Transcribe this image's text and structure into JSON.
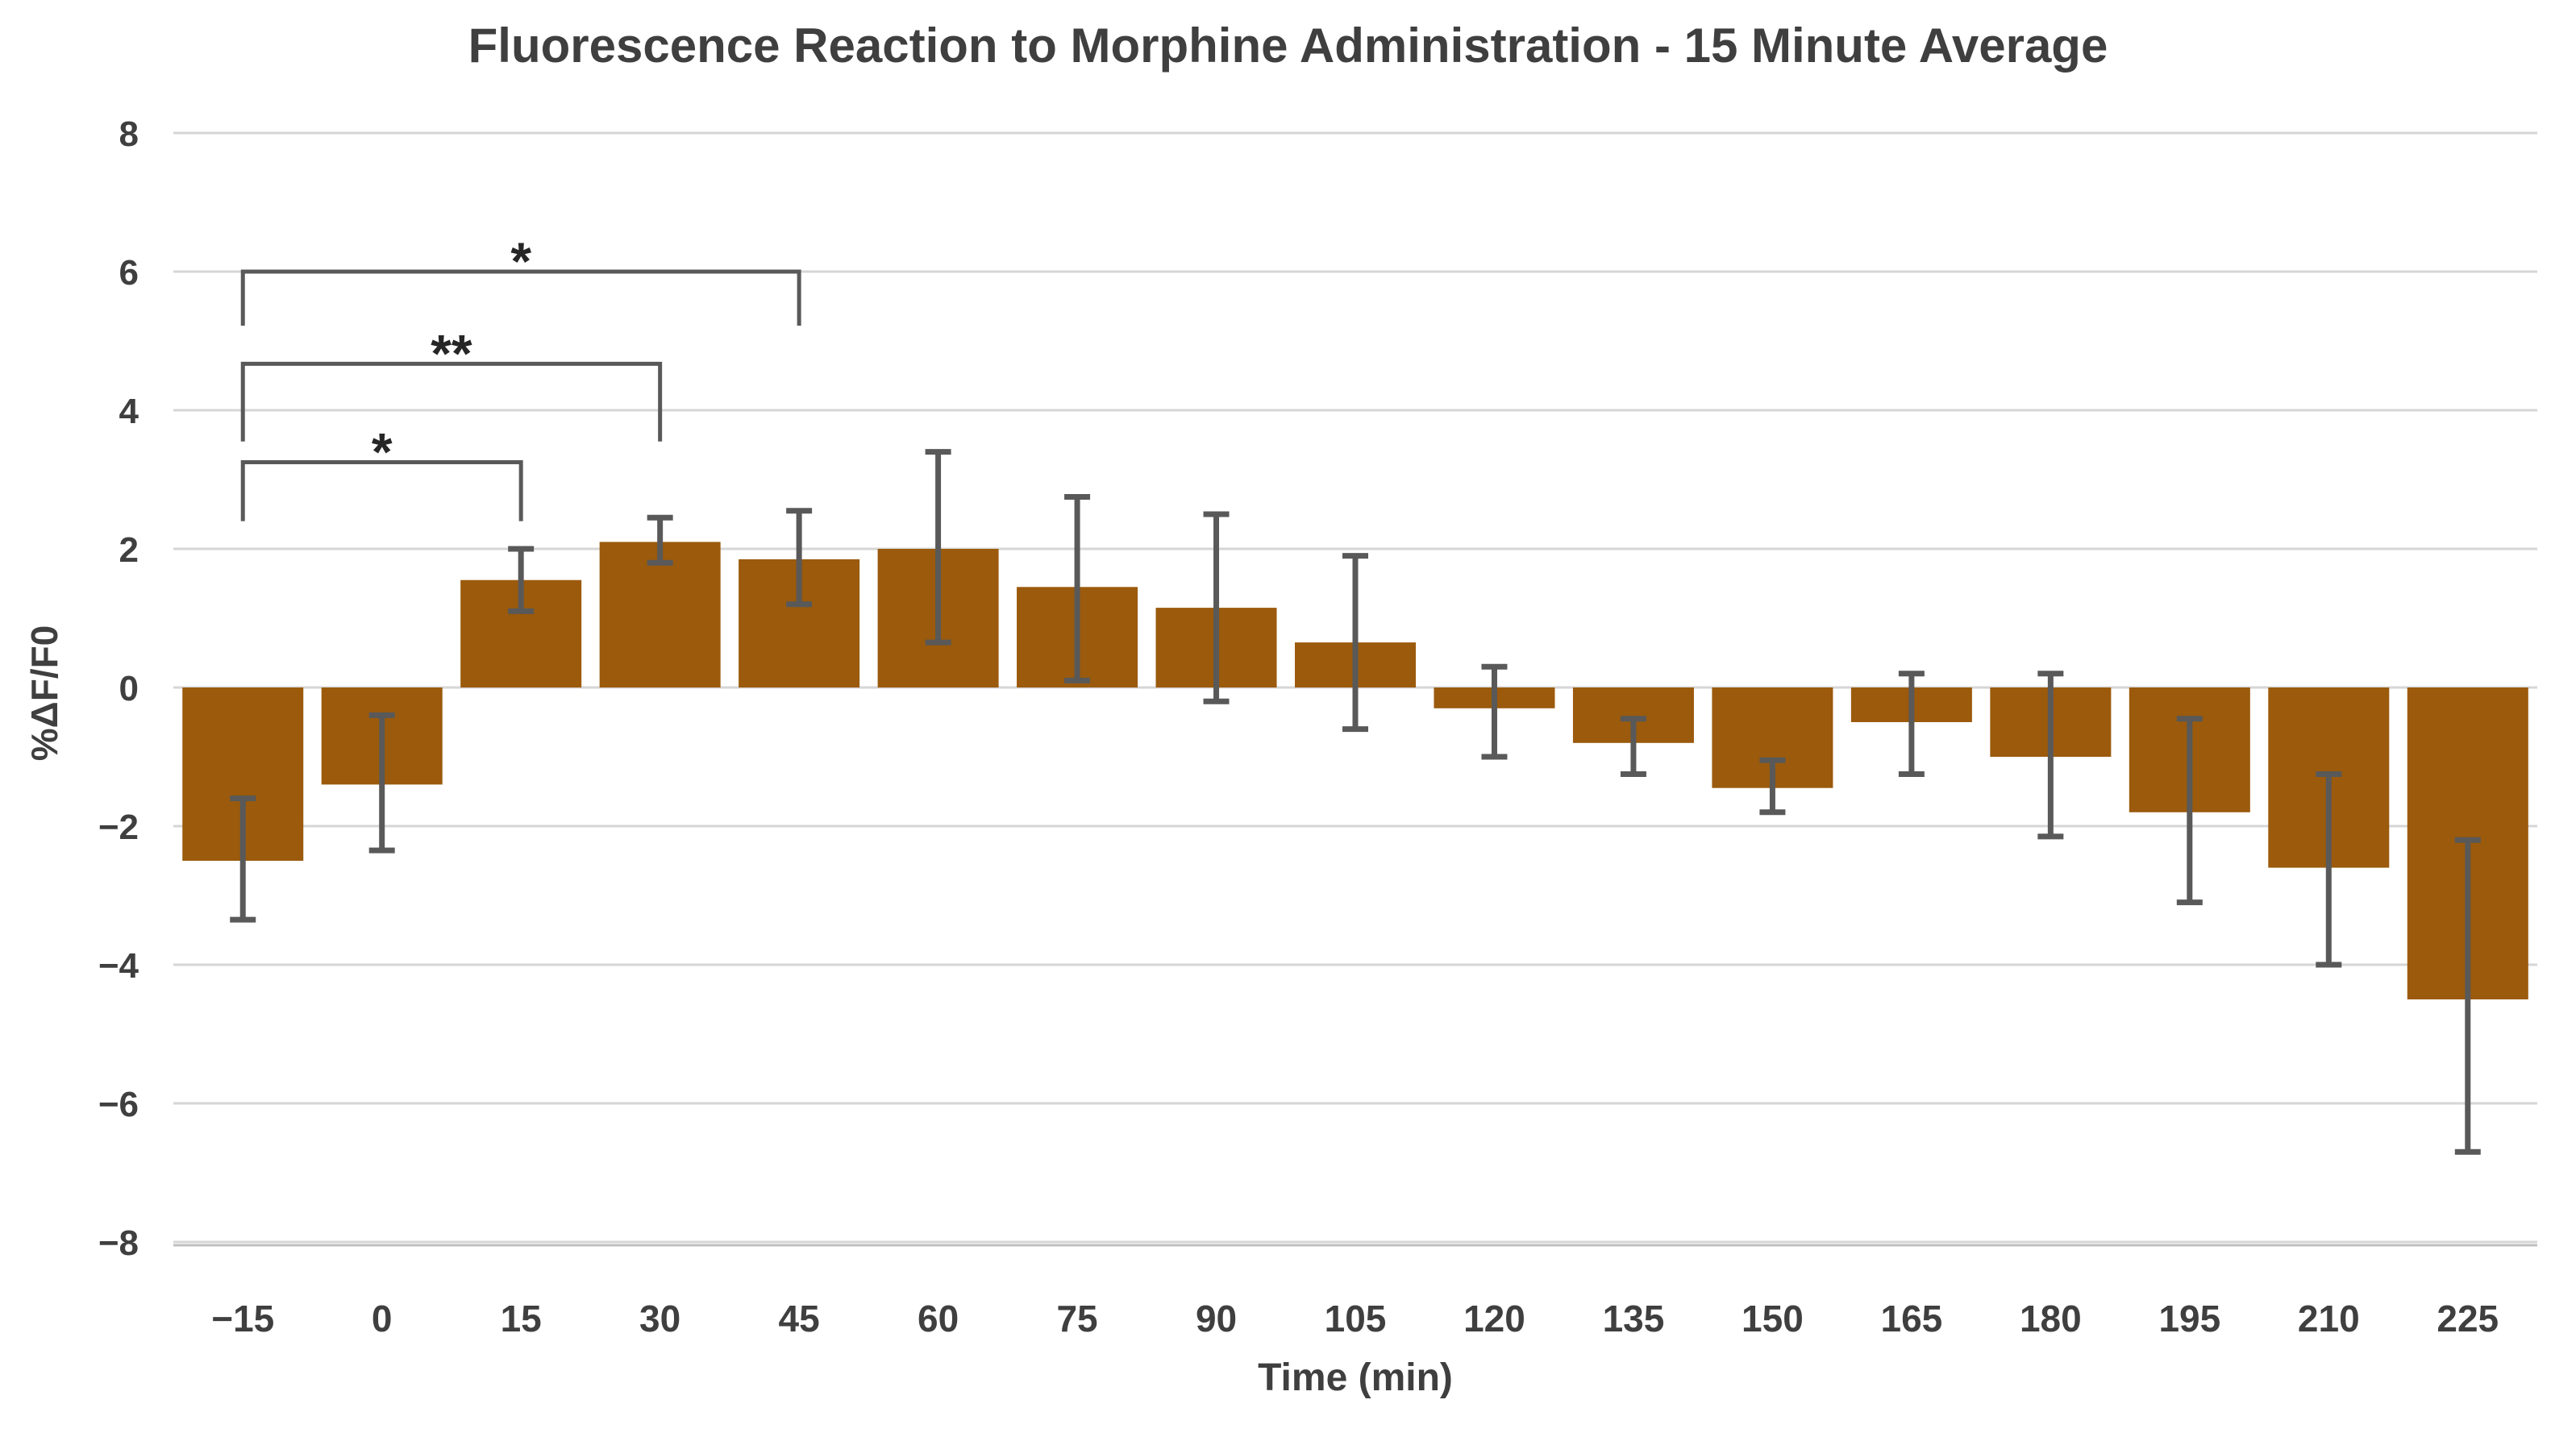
{
  "chart_data": {
    "type": "bar",
    "title": "Fluorescence Reaction to Morphine Administration - 15 Minute Average",
    "xlabel": "Time (min)",
    "ylabel": "%ΔF/F0",
    "ylim": [
      -8,
      8
    ],
    "ytick_step": 2,
    "grid": true,
    "legend": "none",
    "categories": [
      -15,
      0,
      15,
      30,
      45,
      60,
      75,
      90,
      105,
      120,
      135,
      150,
      165,
      180,
      195,
      210,
      225
    ],
    "values": [
      -2.5,
      -1.4,
      1.55,
      2.1,
      1.85,
      2.0,
      1.45,
      1.15,
      0.65,
      -0.3,
      -0.8,
      -1.45,
      -0.5,
      -1.0,
      -1.8,
      -2.6,
      -4.5
    ],
    "error_high": [
      -1.6,
      -0.4,
      2.0,
      2.45,
      2.55,
      3.4,
      2.75,
      2.5,
      1.9,
      0.3,
      -0.45,
      -1.05,
      0.2,
      0.2,
      -0.45,
      -1.25,
      -2.2
    ],
    "error_low": [
      -3.35,
      -2.35,
      1.1,
      1.8,
      1.2,
      0.65,
      0.1,
      -0.2,
      -0.6,
      -1.0,
      -1.25,
      -1.8,
      -1.25,
      -2.15,
      -3.1,
      -4.0,
      -6.7
    ],
    "significance": [
      {
        "from": -15,
        "to": 15,
        "label": "*",
        "y_top": 3.25,
        "tail": 0.85
      },
      {
        "from": -15,
        "to": 30,
        "label": "**",
        "y_top": 4.67,
        "tail": 1.12
      },
      {
        "from": -15,
        "to": 45,
        "label": "*",
        "y_top": 6.0,
        "tail": 0.78
      }
    ],
    "colors": {
      "bar": "#9B5A0C",
      "error": "#595959",
      "grid": "#D6D6D6",
      "axis_line": "#BFBFBF",
      "text": "#3F3F3F",
      "significance": "#262626"
    }
  }
}
